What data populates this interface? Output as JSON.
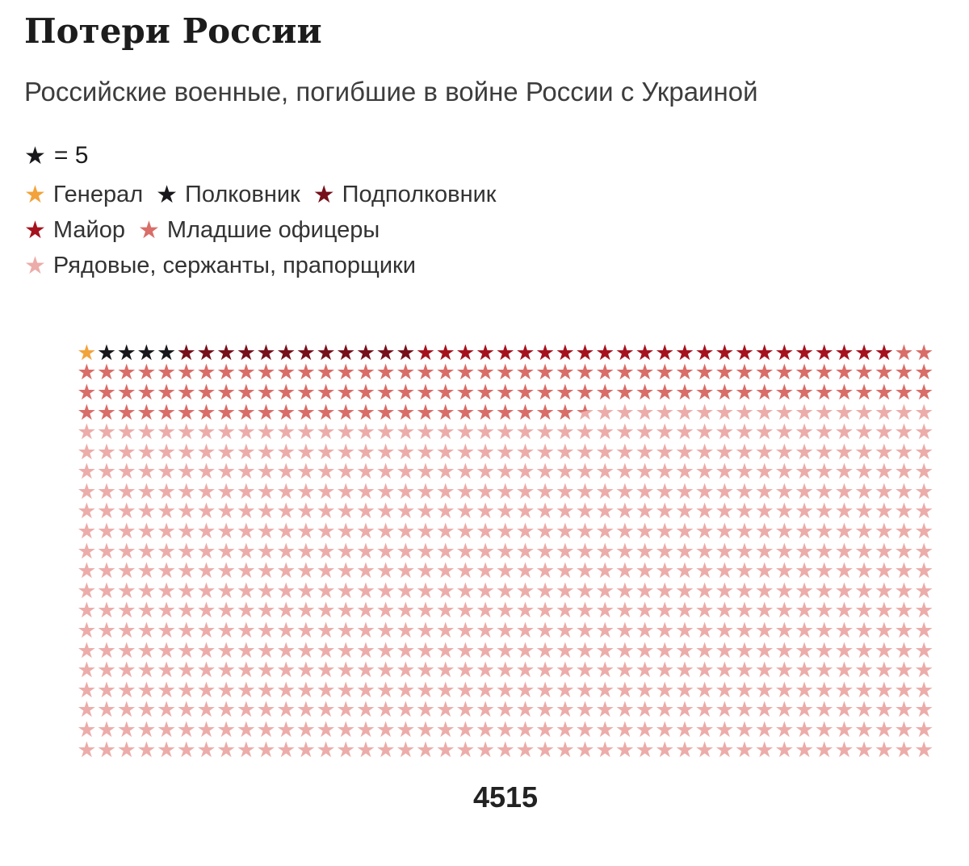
{
  "header": {
    "title": "Потери России",
    "subtitle": "Российские военные, погибшие в войне России с Украиной"
  },
  "legend": {
    "key": {
      "star_color": "#18181C",
      "label": "= 5"
    },
    "items": [
      {
        "label": "Генерал",
        "color": "#F2A33B"
      },
      {
        "label": "Полковник",
        "color": "#18181C"
      },
      {
        "label": "Подполковник",
        "color": "#76101A"
      },
      {
        "label": "Майор",
        "color": "#A5121D"
      },
      {
        "label": "Младшие офицеры",
        "color": "#D96D68"
      },
      {
        "label": "Рядовые, сержанты, прапорщики",
        "color": "#ECACA9"
      }
    ],
    "rows": [
      [
        0,
        1,
        2
      ],
      [
        3,
        4
      ],
      [
        5
      ]
    ]
  },
  "chart_data": {
    "type": "pictogram",
    "title": "Потери России",
    "subtitle": "Российские военные, погибшие в войне России с Украиной",
    "star_symbol": "★",
    "unit_per_star": 5,
    "columns": 43,
    "rows": 21,
    "total_stars": 903,
    "total": 4515,
    "total_label": "4515",
    "legend_position": "top",
    "segments": [
      {
        "category": "Генерал",
        "color": "#F2A33B",
        "stars": 1,
        "approx_value": 5
      },
      {
        "category": "Полковник",
        "color": "#18181C",
        "stars": 4,
        "approx_value": 20
      },
      {
        "category": "Подполковник",
        "color": "#76101A",
        "stars": 12,
        "approx_value": 60
      },
      {
        "category": "Майор",
        "color": "#A5121D",
        "stars": 24,
        "approx_value": 120
      },
      {
        "category": "Младшие офицеры",
        "color": "#D96D68",
        "stars": 113,
        "approx_value": 567
      },
      {
        "category": "Младшие офицеры / Рядовые (переходная звезда)",
        "split_colors": [
          "#D96D68",
          "#ECACA9"
        ],
        "stars": 1
      },
      {
        "category": "Рядовые, сержанты, прапорщики",
        "color": "#ECACA9",
        "stars": 748,
        "approx_value": 3743
      }
    ]
  }
}
